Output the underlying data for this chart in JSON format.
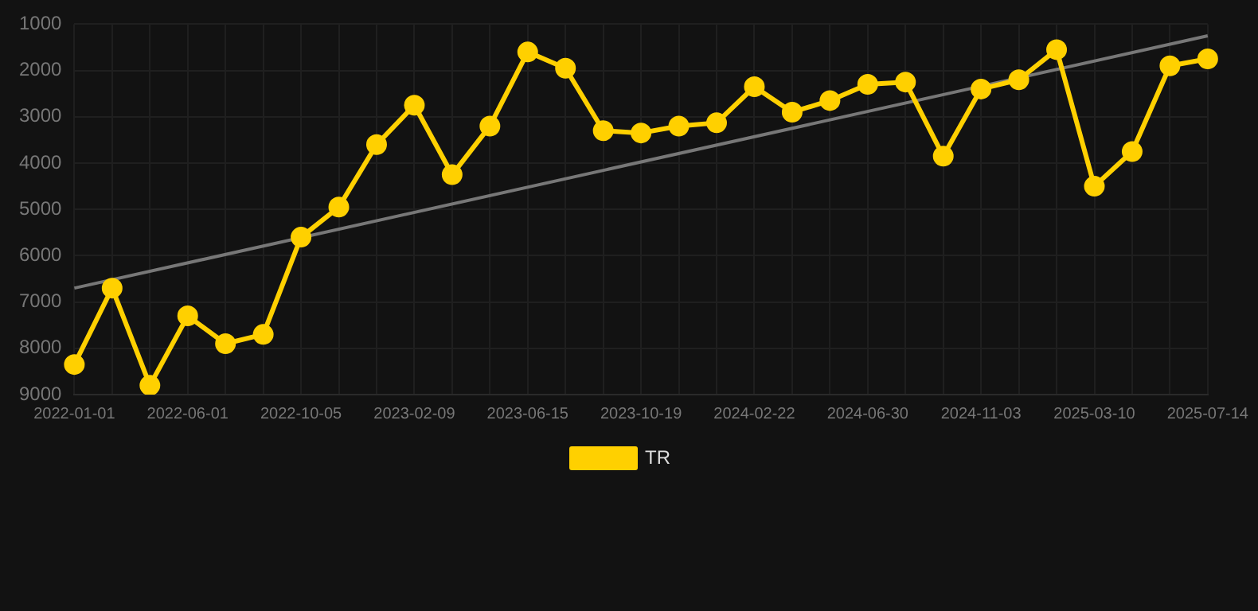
{
  "chart_data": {
    "type": "line",
    "categories": [
      "2022-01-01",
      null,
      null,
      "2022-06-01",
      null,
      null,
      "2022-10-05",
      null,
      null,
      "2023-02-09",
      null,
      null,
      "2023-06-15",
      null,
      null,
      "2023-10-19",
      null,
      null,
      "2024-02-22",
      null,
      null,
      "2024-06-30",
      null,
      null,
      "2024-11-03",
      null,
      null,
      "2025-03-10",
      null,
      null,
      "2025-07-14"
    ],
    "series": [
      {
        "name": "TR",
        "color": "#ffd000",
        "values": [
          8350,
          6700,
          8800,
          7300,
          7900,
          7700,
          5600,
          4950,
          3600,
          2750,
          4250,
          3200,
          1600,
          1950,
          3300,
          3350,
          3200,
          3130,
          2350,
          2900,
          2650,
          2300,
          2250,
          3850,
          2400,
          2200,
          1550,
          4500,
          3750,
          1900,
          1750
        ]
      },
      {
        "type": "line",
        "color": "#777777",
        "values": [
          6700,
          null,
          null,
          null,
          null,
          null,
          null,
          null,
          null,
          null,
          null,
          null,
          null,
          null,
          null,
          null,
          null,
          null,
          null,
          null,
          null,
          null,
          null,
          null,
          null,
          null,
          null,
          null,
          null,
          null,
          1250
        ],
        "marker": "none"
      }
    ],
    "ylim": [
      9000,
      1000
    ],
    "yticks": [
      1000,
      2000,
      3000,
      4000,
      5000,
      6000,
      7000,
      8000,
      9000
    ],
    "grid": true,
    "legend": "bottom",
    "marker": "circle",
    "line_style": "solid"
  }
}
